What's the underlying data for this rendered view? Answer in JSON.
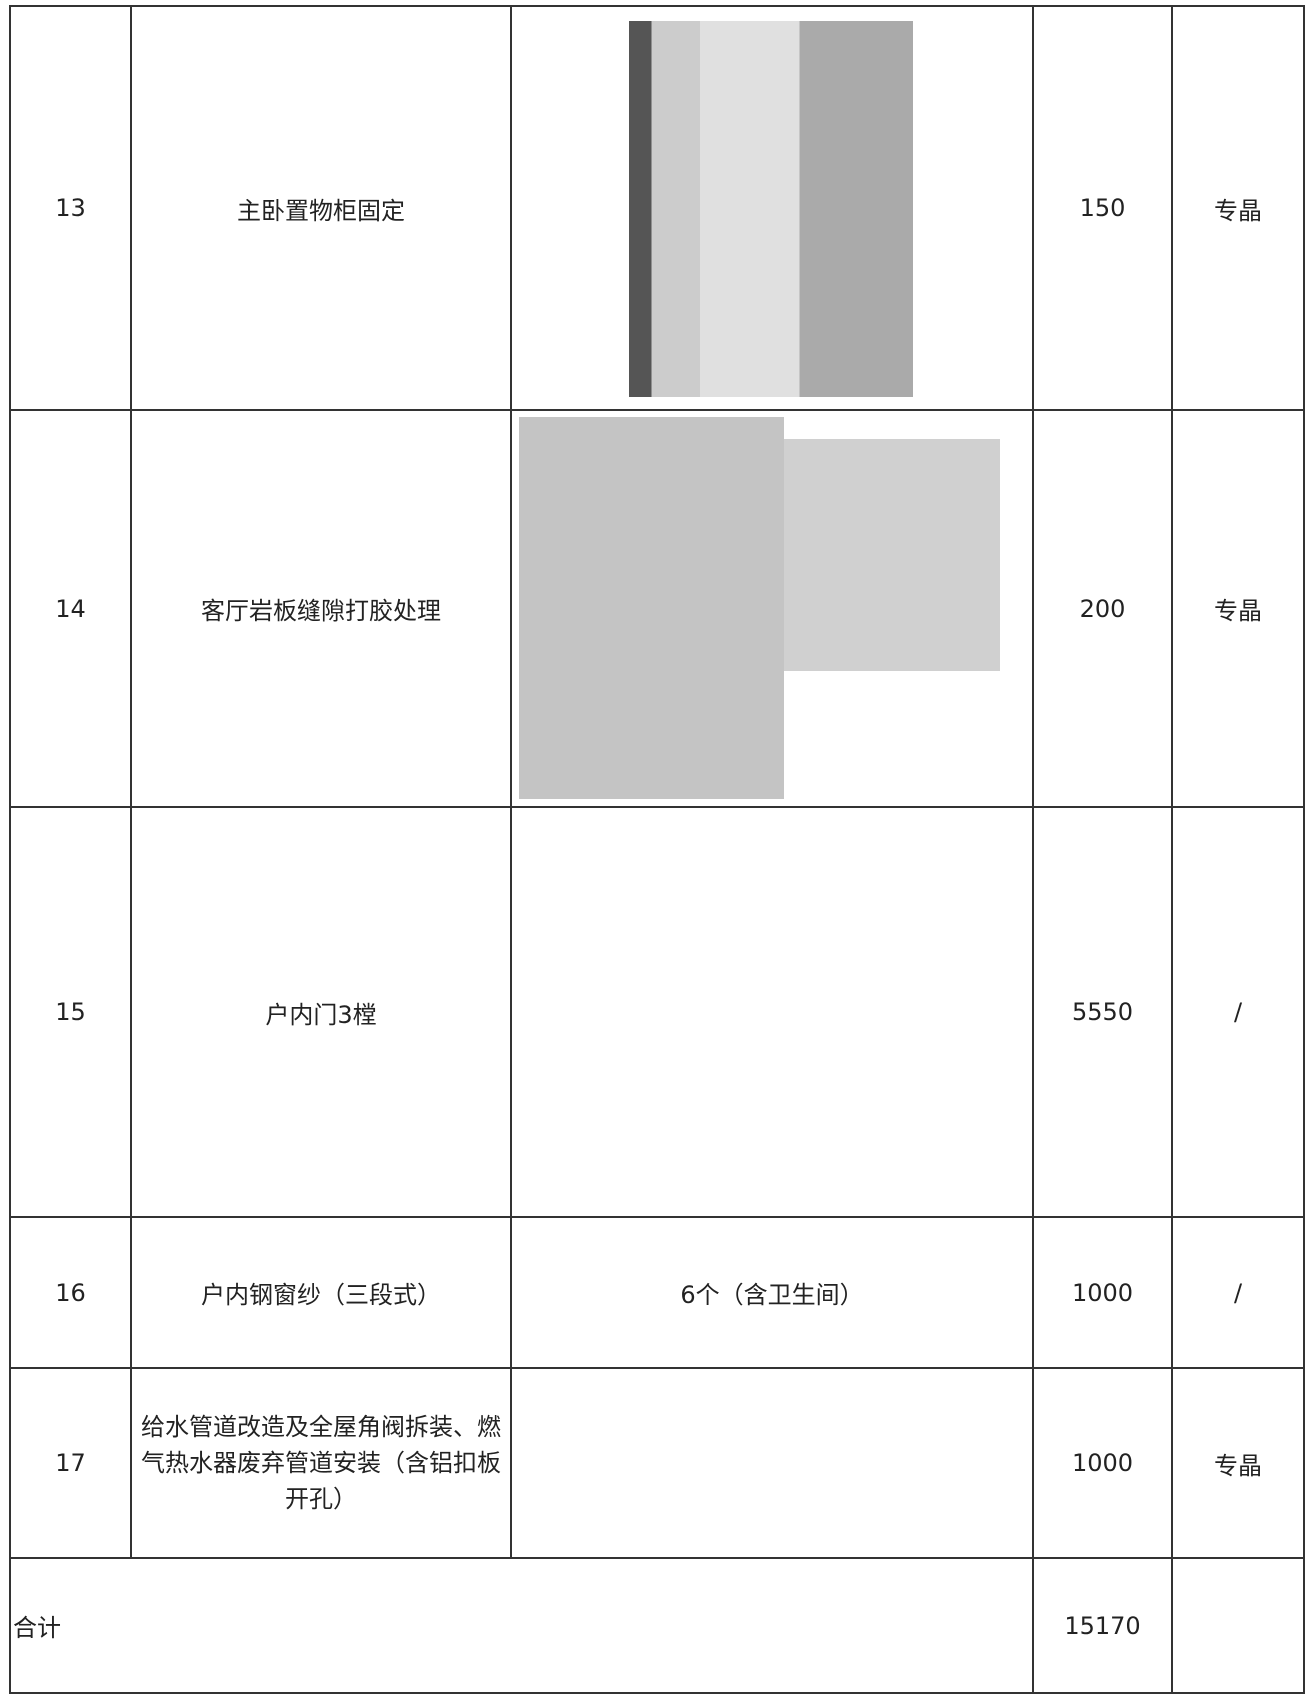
{
  "table": {
    "rows": [
      {
        "no": 13,
        "item": "主卧置物柜固定",
        "price": 150,
        "person": "专晶"
      },
      {
        "no": 14,
        "item": "客厅岩板缝隙打胶处理",
        "price": 200,
        "person": "专晶"
      },
      {
        "no": 15,
        "item": "户内门3樘",
        "price": 5550,
        "person": "/"
      },
      {
        "no": 16,
        "item": "户内钢窗纱（三段式）",
        "note": "6个（含卫生间）",
        "price": 1000,
        "person": "/"
      },
      {
        "no": 17,
        "item": "给水管道改造及全屋角阀拆装、燃气热水器废弃管道安装（含铝扣板开孔）",
        "price": 1000,
        "person": "专晶"
      }
    ],
    "total": {
      "label": "合计",
      "amount": 15170
    }
  }
}
